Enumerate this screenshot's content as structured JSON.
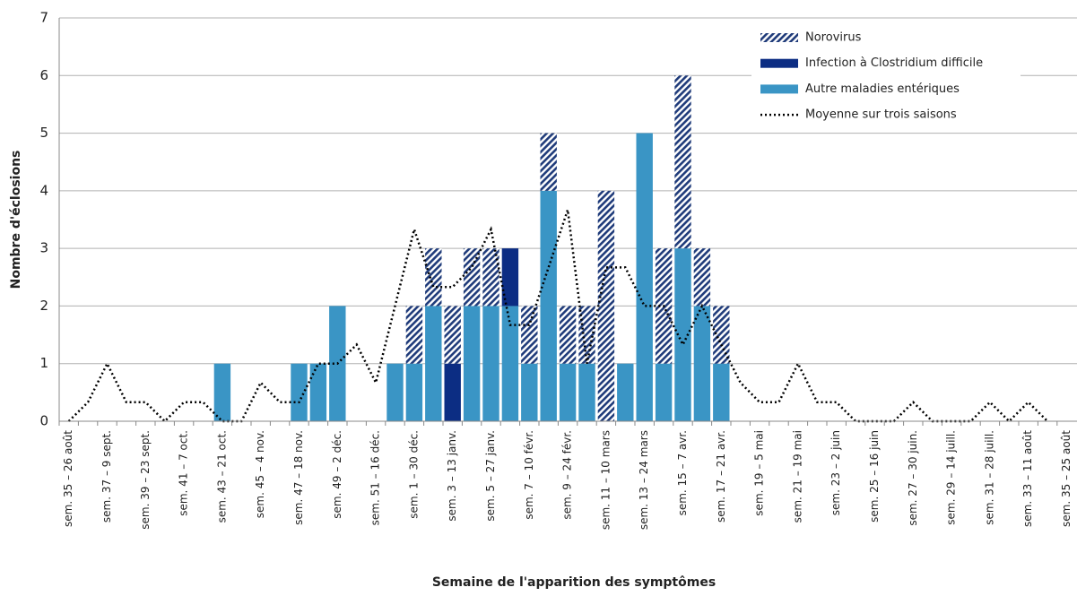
{
  "chart_data": {
    "type": "bar",
    "stacked": true,
    "ylabel": "Nombre d'éclosions",
    "xlabel": "Semaine de l'apparition des symptômes",
    "categories": [
      "sem. 35 – 26 août",
      null,
      "sem. 37 – 9 sept.",
      null,
      "sem. 39 – 23 sept.",
      null,
      "sem. 41 – 7 oct.",
      null,
      "sem. 43 – 21 oct.",
      null,
      "sem. 45 – 4 nov.",
      null,
      "sem. 47 – 18 nov.",
      null,
      "sem. 49 – 2 déc.",
      null,
      "sem. 51 – 16 déc.",
      null,
      "sem. 1 – 30 déc.",
      null,
      "sem. 3 – 13 janv.",
      null,
      "sem. 5 – 27 janv.",
      null,
      "sem. 7 – 10 févr.",
      null,
      "sem. 9 – 24 févr.",
      null,
      "sem. 11 – 10 mars",
      null,
      "sem. 13 – 24 mars",
      null,
      "sem. 15 – 7 avr.",
      null,
      "sem. 17 – 21 avr.",
      null,
      "sem. 19 – 5 mai",
      null,
      "sem. 21 – 19 mai",
      null,
      "sem. 23 – 2 juin",
      null,
      "sem. 25 – 16 juin",
      null,
      "sem. 27 – 30 juin.",
      null,
      "sem. 29 – 14 juill.",
      null,
      "sem. 31 – 28 juill.",
      null,
      "sem. 33 – 11 août",
      null,
      "sem. 35 – 25 août"
    ],
    "series": [
      {
        "name": "Autre maladies entériques",
        "color": "#3a95c5",
        "values": [
          0,
          0,
          0,
          0,
          0,
          0,
          0,
          0,
          1,
          0,
          0,
          0,
          1,
          1,
          2,
          0,
          0,
          1,
          1,
          2,
          0,
          2,
          2,
          2,
          1,
          4,
          1,
          1,
          0,
          1,
          5,
          1,
          3,
          2,
          1,
          0,
          0,
          0,
          0,
          0,
          0,
          0,
          0,
          0,
          0,
          0,
          0,
          0,
          0,
          0,
          0,
          0,
          0
        ]
      },
      {
        "name": "Infection à Clostridium difficile",
        "color": "#0c2d83",
        "values": [
          0,
          0,
          0,
          0,
          0,
          0,
          0,
          0,
          0,
          0,
          0,
          0,
          0,
          0,
          0,
          0,
          0,
          0,
          0,
          0,
          1,
          0,
          0,
          1,
          0,
          0,
          0,
          0,
          0,
          0,
          0,
          0,
          0,
          0,
          0,
          0,
          0,
          0,
          0,
          0,
          0,
          0,
          0,
          0,
          0,
          0,
          0,
          0,
          0,
          0,
          0,
          0,
          0
        ]
      },
      {
        "name": "Norovirus",
        "color": "#1f3b7a",
        "pattern": "hatch",
        "values": [
          0,
          0,
          0,
          0,
          0,
          0,
          0,
          0,
          0,
          0,
          0,
          0,
          0,
          0,
          0,
          0,
          0,
          0,
          1,
          1,
          1,
          1,
          1,
          0,
          1,
          1,
          1,
          1,
          4,
          0,
          0,
          2,
          3,
          1,
          1,
          0,
          0,
          0,
          0,
          0,
          0,
          0,
          0,
          0,
          0,
          0,
          0,
          0,
          0,
          0,
          0,
          0,
          0
        ]
      },
      {
        "name": "Moyenne sur trois saisons",
        "type": "line",
        "color": "#000000",
        "dotted": true,
        "values": [
          0,
          0.33,
          1,
          0.33,
          0.33,
          0,
          0.33,
          0.33,
          0,
          0,
          0.67,
          0.33,
          0.33,
          1,
          1,
          1.33,
          0.67,
          2,
          3.33,
          2.33,
          2.33,
          2.67,
          3.33,
          1.67,
          1.67,
          2.67,
          3.67,
          1,
          2.67,
          2.67,
          2,
          2,
          1.33,
          2,
          1.33,
          0.67,
          0.33,
          0.33,
          1,
          0.33,
          0.33,
          0,
          0,
          0,
          0.33,
          0,
          0,
          0,
          0.33,
          0,
          0.33,
          0,
          null
        ]
      }
    ],
    "legend_order": [
      2,
      1,
      0,
      3
    ],
    "legend": "upper right",
    "ylim": [
      0,
      7
    ],
    "yticks": [
      0,
      1,
      2,
      3,
      4,
      5,
      6,
      7
    ],
    "grid": true
  }
}
